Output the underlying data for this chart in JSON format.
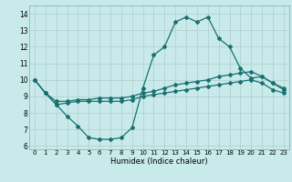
{
  "xlabel": "Humidex (Indice chaleur)",
  "bg_color": "#c8eaea",
  "grid_color": "#b0cccc",
  "line_color": "#1a7070",
  "xlim": [
    -0.5,
    23.5
  ],
  "ylim": [
    5.8,
    14.5
  ],
  "yticks": [
    6,
    7,
    8,
    9,
    10,
    11,
    12,
    13,
    14
  ],
  "xticks": [
    0,
    1,
    2,
    3,
    4,
    5,
    6,
    7,
    8,
    9,
    10,
    11,
    12,
    13,
    14,
    15,
    16,
    17,
    18,
    19,
    20,
    21,
    22,
    23
  ],
  "line1_x": [
    0,
    1,
    2,
    3,
    4,
    5,
    6,
    7,
    8,
    9,
    10,
    11,
    12,
    13,
    14,
    15,
    16,
    17,
    18,
    19,
    20,
    21,
    22,
    23
  ],
  "line1_y": [
    10.0,
    9.2,
    8.5,
    7.8,
    7.2,
    6.5,
    6.4,
    6.4,
    6.5,
    7.1,
    9.5,
    11.5,
    12.0,
    13.5,
    13.8,
    13.5,
    13.8,
    12.5,
    12.0,
    10.7,
    10.1,
    10.2,
    9.8,
    9.4
  ],
  "line2_x": [
    0,
    1,
    2,
    3,
    4,
    5,
    6,
    7,
    8,
    9,
    10,
    11,
    12,
    13,
    14,
    15,
    16,
    17,
    18,
    19,
    20,
    21,
    22,
    23
  ],
  "line2_y": [
    10.0,
    9.2,
    8.7,
    8.7,
    8.8,
    8.8,
    8.9,
    8.9,
    8.9,
    9.0,
    9.2,
    9.3,
    9.5,
    9.7,
    9.8,
    9.9,
    10.0,
    10.2,
    10.3,
    10.4,
    10.5,
    10.2,
    9.8,
    9.5
  ],
  "line3_x": [
    0,
    1,
    2,
    3,
    4,
    5,
    6,
    7,
    8,
    9,
    10,
    11,
    12,
    13,
    14,
    15,
    16,
    17,
    18,
    19,
    20,
    21,
    22,
    23
  ],
  "line3_y": [
    10.0,
    9.2,
    8.5,
    8.6,
    8.7,
    8.7,
    8.7,
    8.7,
    8.7,
    8.8,
    9.0,
    9.1,
    9.2,
    9.3,
    9.4,
    9.5,
    9.6,
    9.7,
    9.8,
    9.9,
    10.0,
    9.8,
    9.4,
    9.2
  ]
}
